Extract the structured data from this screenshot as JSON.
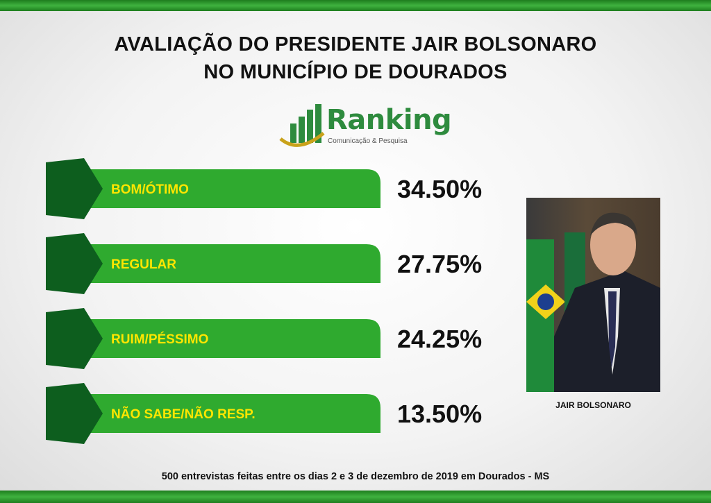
{
  "title": {
    "line1": "AVALIAÇÃO DO PRESIDENTE JAIR BOLSONARO",
    "line2": "NO MUNICÍPIO DE DOURADOS"
  },
  "logo": {
    "name": "Ranking",
    "tagline": "Comunicação & Pesquisa"
  },
  "photo": {
    "caption": "JAIR BOLSONARO"
  },
  "footnote": "500 entrevistas feitas entre os dias 2 e 3 de dezembro de 2019 em Dourados  - MS",
  "colors": {
    "bar": "#2faa2f",
    "bar_dark": "#0d5e1e",
    "label": "#ffe600",
    "stripe": "#2e9a2e"
  },
  "chart_data": {
    "type": "bar",
    "categories": [
      "BOM/ÓTIMO",
      "REGULAR",
      "RUIM/PÉSSIMO",
      "NÃO SABE/NÃO RESP."
    ],
    "values": [
      34.5,
      27.75,
      24.25,
      13.5
    ],
    "value_labels": [
      "34.50%",
      "27.75%",
      "24.25%",
      "13.50%"
    ]
  }
}
